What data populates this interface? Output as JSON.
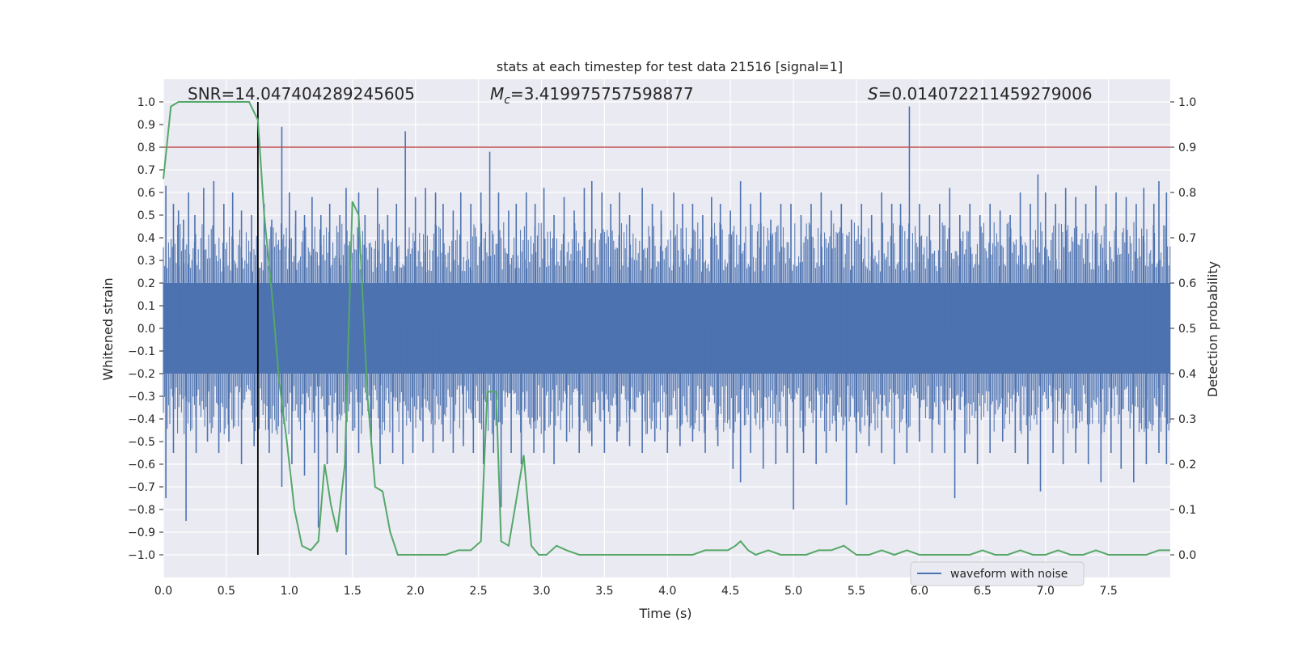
{
  "chart_data": {
    "type": "line",
    "title": "stats at each timestep for test data 21516 [signal=1]",
    "xlabel": "Time (s)",
    "ylabel_left": "Whitened strain",
    "ylabel_right": "Detection probability",
    "xlim": [
      0.0,
      7.99
    ],
    "ylim_left": [
      -1.1,
      1.1
    ],
    "ylim_right": [
      -0.05,
      1.05
    ],
    "grid": true,
    "xticks": [
      "0.0",
      "0.5",
      "1.0",
      "1.5",
      "2.0",
      "2.5",
      "3.0",
      "3.5",
      "4.0",
      "4.5",
      "5.0",
      "5.5",
      "6.0",
      "6.5",
      "7.0",
      "7.5"
    ],
    "yticks_left": [
      "1.0",
      "0.9",
      "0.8",
      "0.7",
      "0.6",
      "0.5",
      "0.4",
      "0.3",
      "0.2",
      "0.1",
      "0.0",
      "−0.1",
      "−0.2",
      "−0.3",
      "−0.4",
      "−0.5",
      "−0.6",
      "−0.7",
      "−0.8",
      "−0.9",
      "−1.0"
    ],
    "yticks_right": [
      "1.0",
      "0.9",
      "0.8",
      "0.7",
      "0.6",
      "0.5",
      "0.4",
      "0.3",
      "0.2",
      "0.1",
      "0.0"
    ],
    "annotations": {
      "snr": "SNR=14.047404289245605",
      "mc_symbol": "M",
      "mc_sub": "c",
      "mc_value": "=3.419975757598877",
      "s_symbol": "S",
      "s_value": "=0.014072211459279006"
    },
    "threshold": {
      "value": 0.9,
      "color": "#c44e52"
    },
    "vline": {
      "x": 0.75,
      "ymin": -1.0,
      "ymax": 1.0,
      "color": "#000000"
    },
    "waveform": {
      "name": "waveform with noise",
      "color": "#4c72b0",
      "core_amplitude": 0.2,
      "spikes_positive": [
        [
          0.02,
          0.63
        ],
        [
          0.08,
          0.55
        ],
        [
          0.12,
          0.52
        ],
        [
          0.16,
          0.48
        ],
        [
          0.2,
          0.6
        ],
        [
          0.25,
          0.5
        ],
        [
          0.32,
          0.62
        ],
        [
          0.4,
          0.65
        ],
        [
          0.48,
          0.55
        ],
        [
          0.55,
          0.6
        ],
        [
          0.62,
          0.52
        ],
        [
          0.7,
          0.5
        ],
        [
          0.8,
          0.55
        ],
        [
          0.86,
          0.48
        ],
        [
          0.94,
          0.89
        ],
        [
          1.0,
          0.6
        ],
        [
          1.05,
          0.52
        ],
        [
          1.12,
          0.5
        ],
        [
          1.18,
          0.58
        ],
        [
          1.25,
          0.5
        ],
        [
          1.32,
          0.55
        ],
        [
          1.4,
          0.5
        ],
        [
          1.45,
          0.62
        ],
        [
          1.55,
          0.6
        ],
        [
          1.6,
          0.5
        ],
        [
          1.7,
          0.62
        ],
        [
          1.78,
          0.5
        ],
        [
          1.85,
          0.55
        ],
        [
          1.92,
          0.87
        ],
        [
          2.0,
          0.58
        ],
        [
          2.08,
          0.62
        ],
        [
          2.16,
          0.6
        ],
        [
          2.22,
          0.55
        ],
        [
          2.3,
          0.52
        ],
        [
          2.36,
          0.6
        ],
        [
          2.44,
          0.55
        ],
        [
          2.52,
          0.6
        ],
        [
          2.59,
          0.78
        ],
        [
          2.66,
          0.6
        ],
        [
          2.74,
          0.52
        ],
        [
          2.8,
          0.55
        ],
        [
          2.88,
          0.6
        ],
        [
          2.95,
          0.55
        ],
        [
          3.02,
          0.62
        ],
        [
          3.1,
          0.5
        ],
        [
          3.18,
          0.58
        ],
        [
          3.26,
          0.52
        ],
        [
          3.34,
          0.62
        ],
        [
          3.4,
          0.65
        ],
        [
          3.48,
          0.6
        ],
        [
          3.55,
          0.55
        ],
        [
          3.62,
          0.6
        ],
        [
          3.7,
          0.5
        ],
        [
          3.8,
          0.62
        ],
        [
          3.88,
          0.55
        ],
        [
          3.95,
          0.52
        ],
        [
          4.05,
          0.6
        ],
        [
          4.12,
          0.55
        ],
        [
          4.2,
          0.55
        ],
        [
          4.28,
          0.5
        ],
        [
          4.35,
          0.58
        ],
        [
          4.42,
          0.55
        ],
        [
          4.5,
          0.52
        ],
        [
          4.58,
          0.65
        ],
        [
          4.66,
          0.55
        ],
        [
          4.74,
          0.6
        ],
        [
          4.82,
          0.48
        ],
        [
          4.9,
          0.55
        ],
        [
          4.98,
          0.55
        ],
        [
          5.06,
          0.5
        ],
        [
          5.14,
          0.55
        ],
        [
          5.22,
          0.6
        ],
        [
          5.3,
          0.52
        ],
        [
          5.38,
          0.55
        ],
        [
          5.46,
          0.48
        ],
        [
          5.54,
          0.55
        ],
        [
          5.62,
          0.5
        ],
        [
          5.7,
          0.6
        ],
        [
          5.78,
          0.55
        ],
        [
          5.85,
          0.55
        ],
        [
          5.92,
          0.98
        ],
        [
          6.0,
          0.55
        ],
        [
          6.08,
          0.5
        ],
        [
          6.16,
          0.55
        ],
        [
          6.24,
          0.62
        ],
        [
          6.32,
          0.5
        ],
        [
          6.4,
          0.55
        ],
        [
          6.48,
          0.5
        ],
        [
          6.56,
          0.55
        ],
        [
          6.64,
          0.52
        ],
        [
          6.72,
          0.5
        ],
        [
          6.8,
          0.6
        ],
        [
          6.88,
          0.55
        ],
        [
          6.94,
          0.68
        ],
        [
          7.0,
          0.6
        ],
        [
          7.08,
          0.55
        ],
        [
          7.16,
          0.62
        ],
        [
          7.24,
          0.58
        ],
        [
          7.32,
          0.55
        ],
        [
          7.4,
          0.63
        ],
        [
          7.48,
          0.55
        ],
        [
          7.56,
          0.6
        ],
        [
          7.64,
          0.58
        ],
        [
          7.72,
          0.55
        ],
        [
          7.78,
          0.62
        ],
        [
          7.86,
          0.55
        ],
        [
          7.9,
          0.65
        ],
        [
          7.96,
          0.6
        ]
      ],
      "spikes_negative": [
        [
          0.02,
          -0.75
        ],
        [
          0.08,
          -0.55
        ],
        [
          0.18,
          -0.85
        ],
        [
          0.26,
          -0.55
        ],
        [
          0.35,
          -0.5
        ],
        [
          0.44,
          -0.55
        ],
        [
          0.52,
          -0.5
        ],
        [
          0.62,
          -0.6
        ],
        [
          0.72,
          -0.52
        ],
        [
          0.84,
          -0.55
        ],
        [
          0.94,
          -0.7
        ],
        [
          1.02,
          -0.6
        ],
        [
          1.12,
          -0.65
        ],
        [
          1.2,
          -0.55
        ],
        [
          1.23,
          -0.88
        ],
        [
          1.3,
          -0.6
        ],
        [
          1.38,
          -0.55
        ],
        [
          1.45,
          -1.0
        ],
        [
          1.55,
          -0.55
        ],
        [
          1.65,
          -0.52
        ],
        [
          1.72,
          -0.6
        ],
        [
          1.82,
          -0.55
        ],
        [
          1.9,
          -0.6
        ],
        [
          1.98,
          -0.55
        ],
        [
          2.06,
          -0.5
        ],
        [
          2.14,
          -0.55
        ],
        [
          2.22,
          -0.5
        ],
        [
          2.3,
          -0.55
        ],
        [
          2.38,
          -0.52
        ],
        [
          2.46,
          -0.55
        ],
        [
          2.54,
          -0.6
        ],
        [
          2.62,
          -0.55
        ],
        [
          2.68,
          -0.79
        ],
        [
          2.76,
          -0.55
        ],
        [
          2.84,
          -0.6
        ],
        [
          2.94,
          -0.55
        ],
        [
          3.02,
          -0.55
        ],
        [
          3.1,
          -0.6
        ],
        [
          3.2,
          -0.5
        ],
        [
          3.3,
          -0.55
        ],
        [
          3.4,
          -0.52
        ],
        [
          3.5,
          -0.55
        ],
        [
          3.6,
          -0.5
        ],
        [
          3.7,
          -0.52
        ],
        [
          3.8,
          -0.55
        ],
        [
          3.9,
          -0.5
        ],
        [
          4.0,
          -0.55
        ],
        [
          4.1,
          -0.52
        ],
        [
          4.2,
          -0.5
        ],
        [
          4.3,
          -0.55
        ],
        [
          4.4,
          -0.52
        ],
        [
          4.52,
          -0.62
        ],
        [
          4.58,
          -0.68
        ],
        [
          4.66,
          -0.55
        ],
        [
          4.76,
          -0.62
        ],
        [
          4.86,
          -0.6
        ],
        [
          4.95,
          -0.55
        ],
        [
          5.0,
          -0.8
        ],
        [
          5.08,
          -0.55
        ],
        [
          5.18,
          -0.6
        ],
        [
          5.26,
          -0.55
        ],
        [
          5.34,
          -0.5
        ],
        [
          5.42,
          -0.78
        ],
        [
          5.5,
          -0.55
        ],
        [
          5.6,
          -0.52
        ],
        [
          5.7,
          -0.55
        ],
        [
          5.8,
          -0.6
        ],
        [
          5.9,
          -0.55
        ],
        [
          6.0,
          -0.5
        ],
        [
          6.1,
          -0.55
        ],
        [
          6.2,
          -0.55
        ],
        [
          6.28,
          -0.75
        ],
        [
          6.36,
          -0.55
        ],
        [
          6.46,
          -0.6
        ],
        [
          6.56,
          -0.55
        ],
        [
          6.66,
          -0.5
        ],
        [
          6.76,
          -0.55
        ],
        [
          6.86,
          -0.6
        ],
        [
          6.96,
          -0.72
        ],
        [
          7.06,
          -0.55
        ],
        [
          7.14,
          -0.6
        ],
        [
          7.24,
          -0.55
        ],
        [
          7.34,
          -0.6
        ],
        [
          7.44,
          -0.68
        ],
        [
          7.52,
          -0.55
        ],
        [
          7.6,
          -0.62
        ],
        [
          7.7,
          -0.68
        ],
        [
          7.8,
          -0.6
        ],
        [
          7.9,
          -0.55
        ],
        [
          7.96,
          -0.6
        ]
      ]
    },
    "probability": {
      "color": "#55a868",
      "points": [
        [
          0.0,
          0.83
        ],
        [
          0.06,
          0.99
        ],
        [
          0.12,
          1.0
        ],
        [
          0.2,
          1.0
        ],
        [
          0.3,
          1.0
        ],
        [
          0.4,
          1.0
        ],
        [
          0.5,
          1.0
        ],
        [
          0.6,
          1.0
        ],
        [
          0.68,
          1.0
        ],
        [
          0.75,
          0.96
        ],
        [
          0.8,
          0.75
        ],
        [
          0.86,
          0.58
        ],
        [
          0.92,
          0.38
        ],
        [
          0.98,
          0.25
        ],
        [
          1.04,
          0.1
        ],
        [
          1.1,
          0.02
        ],
        [
          1.17,
          0.01
        ],
        [
          1.23,
          0.03
        ],
        [
          1.28,
          0.2
        ],
        [
          1.33,
          0.11
        ],
        [
          1.38,
          0.05
        ],
        [
          1.44,
          0.2
        ],
        [
          1.5,
          0.78
        ],
        [
          1.55,
          0.75
        ],
        [
          1.62,
          0.35
        ],
        [
          1.68,
          0.15
        ],
        [
          1.74,
          0.14
        ],
        [
          1.8,
          0.05
        ],
        [
          1.86,
          0.0
        ],
        [
          1.94,
          0.0
        ],
        [
          2.04,
          0.0
        ],
        [
          2.14,
          0.0
        ],
        [
          2.24,
          0.0
        ],
        [
          2.34,
          0.01
        ],
        [
          2.44,
          0.01
        ],
        [
          2.52,
          0.03
        ],
        [
          2.57,
          0.36
        ],
        [
          2.64,
          0.36
        ],
        [
          2.68,
          0.03
        ],
        [
          2.74,
          0.02
        ],
        [
          2.8,
          0.12
        ],
        [
          2.86,
          0.22
        ],
        [
          2.92,
          0.02
        ],
        [
          2.98,
          0.0
        ],
        [
          3.04,
          0.0
        ],
        [
          3.12,
          0.02
        ],
        [
          3.2,
          0.01
        ],
        [
          3.3,
          0.0
        ],
        [
          3.4,
          0.0
        ],
        [
          3.5,
          0.0
        ],
        [
          3.6,
          0.0
        ],
        [
          3.7,
          0.0
        ],
        [
          3.8,
          0.0
        ],
        [
          3.9,
          0.0
        ],
        [
          4.0,
          0.0
        ],
        [
          4.1,
          0.0
        ],
        [
          4.2,
          0.0
        ],
        [
          4.3,
          0.01
        ],
        [
          4.4,
          0.01
        ],
        [
          4.48,
          0.01
        ],
        [
          4.54,
          0.02
        ],
        [
          4.58,
          0.03
        ],
        [
          4.64,
          0.01
        ],
        [
          4.7,
          0.0
        ],
        [
          4.8,
          0.01
        ],
        [
          4.9,
          0.0
        ],
        [
          5.0,
          0.0
        ],
        [
          5.1,
          0.0
        ],
        [
          5.2,
          0.01
        ],
        [
          5.3,
          0.01
        ],
        [
          5.4,
          0.02
        ],
        [
          5.5,
          0.0
        ],
        [
          5.6,
          0.0
        ],
        [
          5.7,
          0.01
        ],
        [
          5.8,
          0.0
        ],
        [
          5.9,
          0.01
        ],
        [
          6.0,
          0.0
        ],
        [
          6.1,
          0.0
        ],
        [
          6.2,
          0.0
        ],
        [
          6.3,
          0.0
        ],
        [
          6.4,
          0.0
        ],
        [
          6.5,
          0.01
        ],
        [
          6.6,
          0.0
        ],
        [
          6.7,
          0.0
        ],
        [
          6.8,
          0.01
        ],
        [
          6.9,
          0.0
        ],
        [
          7.0,
          0.0
        ],
        [
          7.1,
          0.01
        ],
        [
          7.2,
          0.0
        ],
        [
          7.3,
          0.0
        ],
        [
          7.4,
          0.01
        ],
        [
          7.5,
          0.0
        ],
        [
          7.6,
          0.0
        ],
        [
          7.7,
          0.0
        ],
        [
          7.8,
          0.0
        ],
        [
          7.9,
          0.01
        ],
        [
          7.99,
          0.01
        ]
      ]
    },
    "legend": {
      "label": "waveform with noise",
      "location": "lower-right"
    },
    "colors": {
      "background": "#eaeaf2",
      "grid": "#ffffff"
    }
  }
}
